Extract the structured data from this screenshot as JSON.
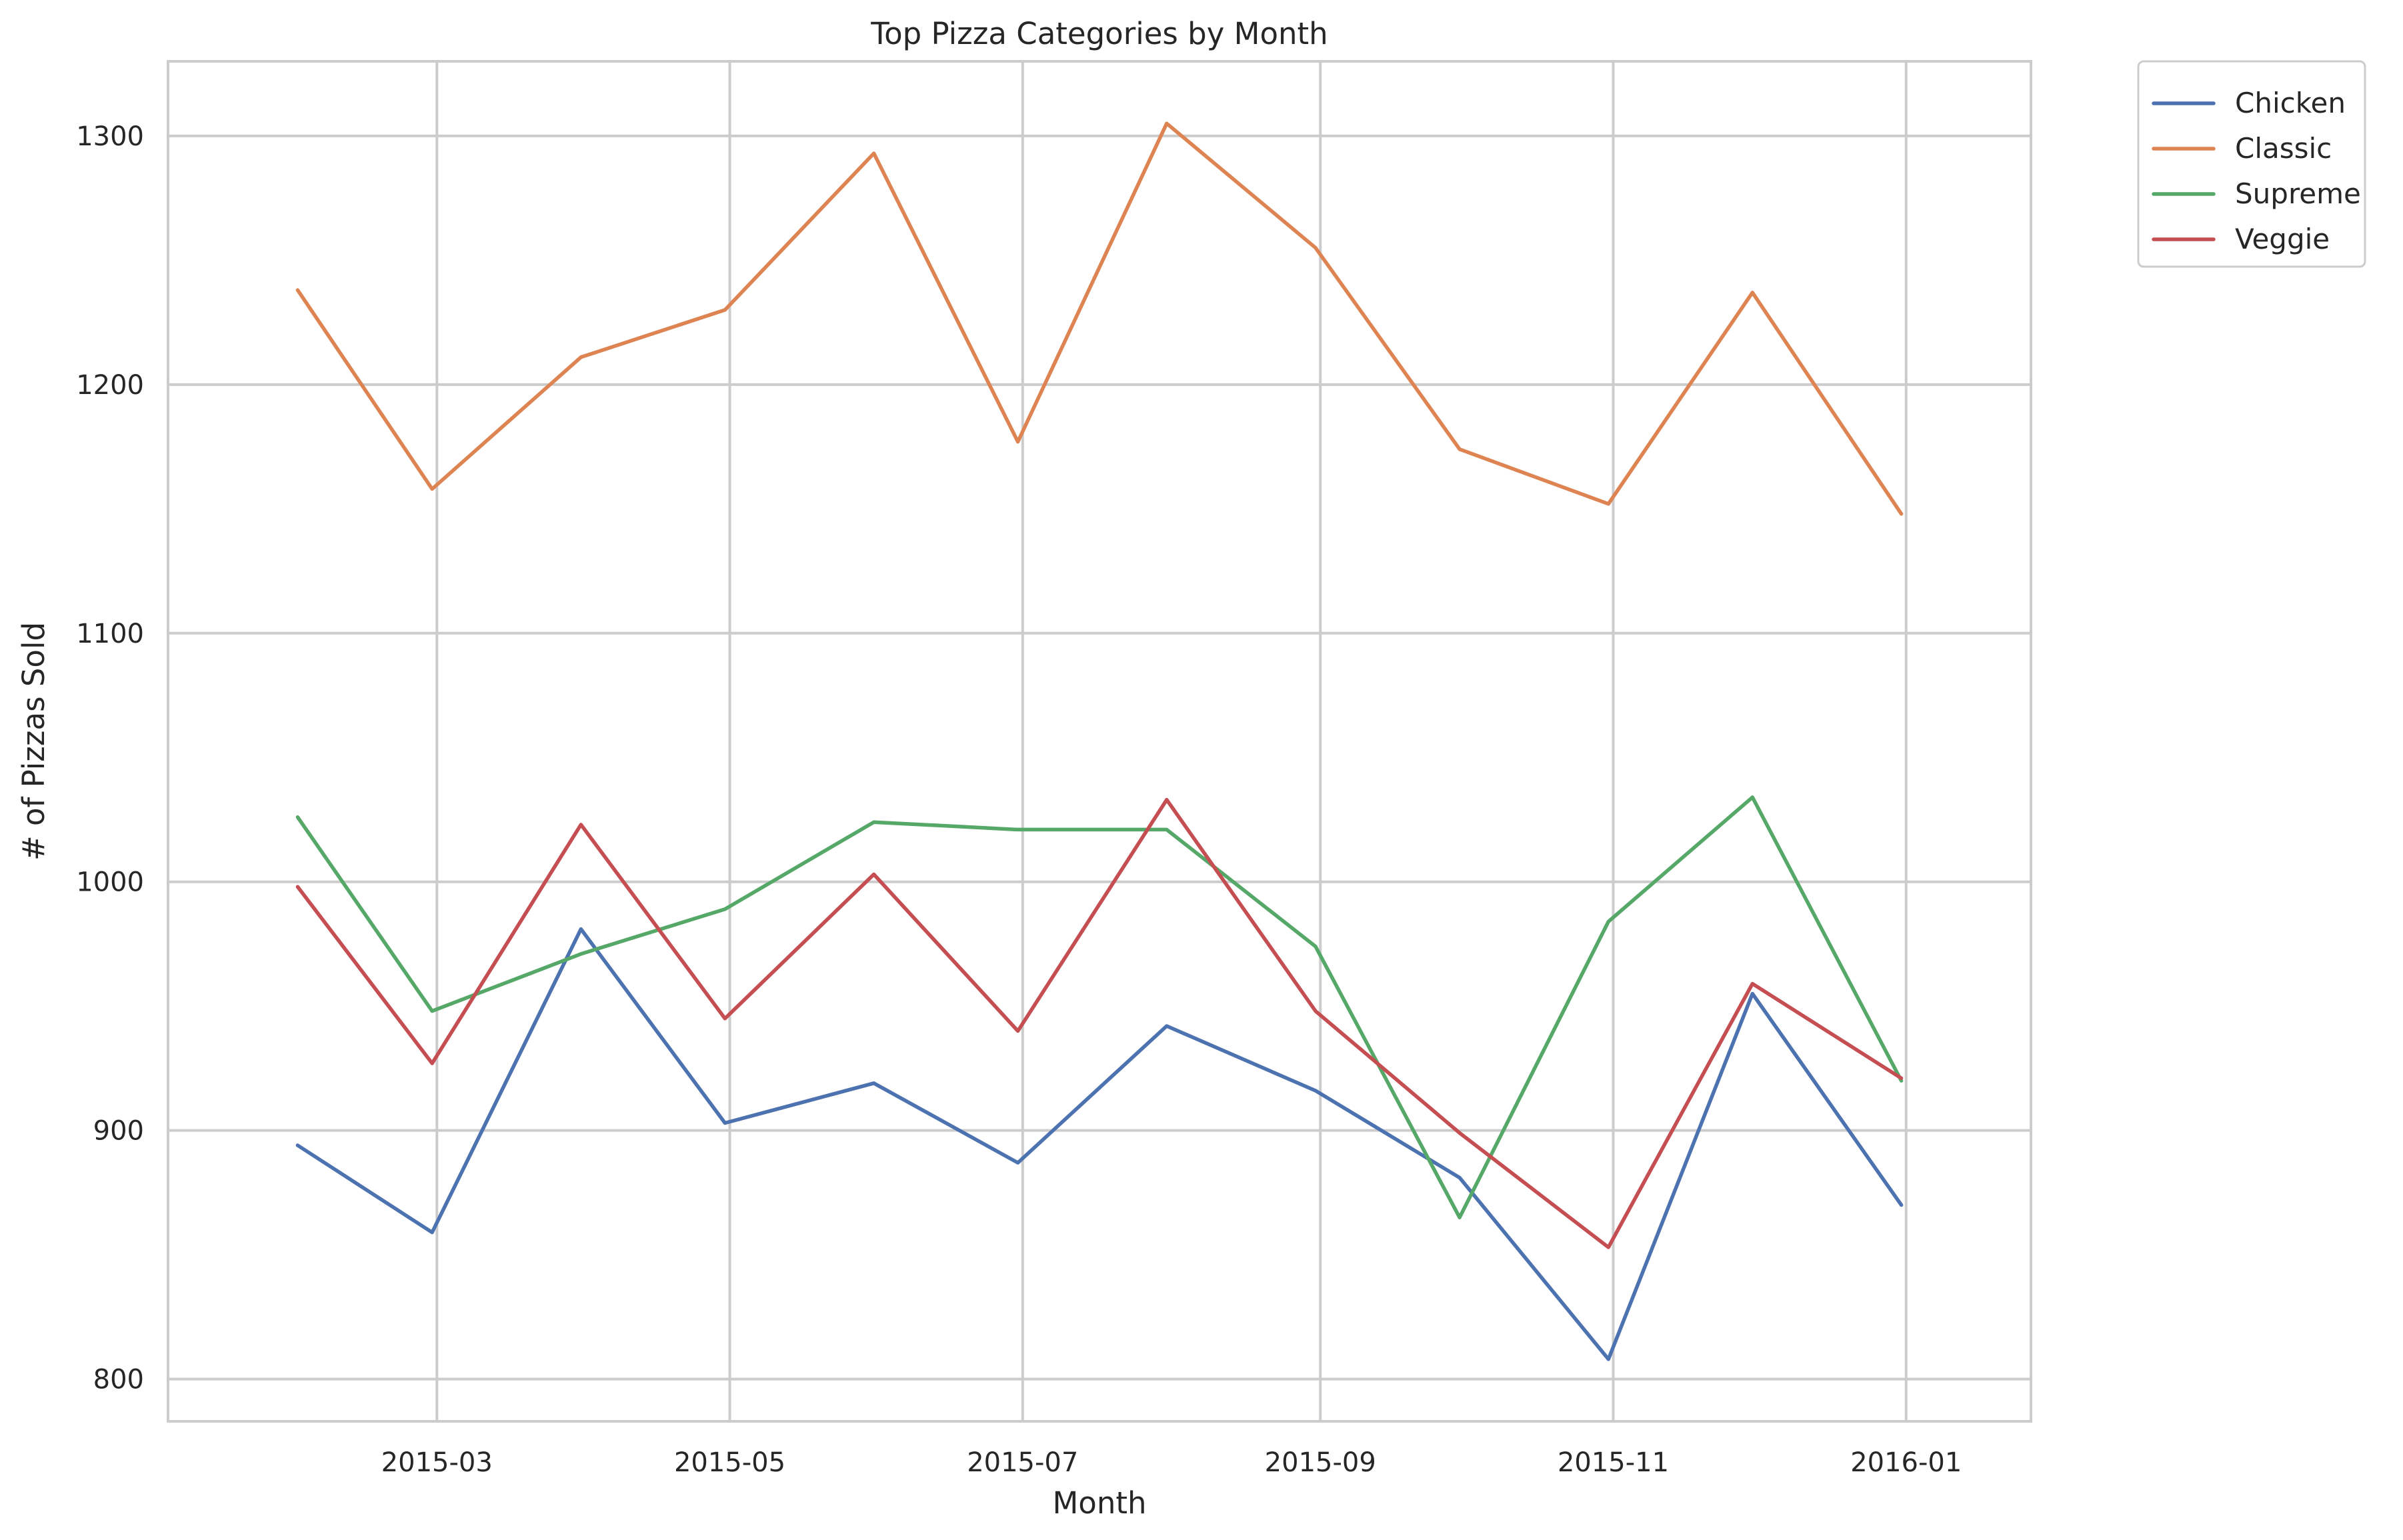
{
  "chart_data": {
    "type": "line",
    "title": "Top Pizza Categories by Month",
    "xlabel": "Month",
    "ylabel": "# of Pizzas Sold",
    "x": [
      "2015-01-31",
      "2015-02-28",
      "2015-03-31",
      "2015-04-30",
      "2015-05-31",
      "2015-06-30",
      "2015-07-31",
      "2015-08-31",
      "2015-09-30",
      "2015-10-31",
      "2015-11-30",
      "2015-12-31"
    ],
    "xlim": [
      "2015-01-04",
      "2016-01-27"
    ],
    "xticks": [
      {
        "date": "2015-03-01",
        "label": "2015-03"
      },
      {
        "date": "2015-05-01",
        "label": "2015-05"
      },
      {
        "date": "2015-07-01",
        "label": "2015-07"
      },
      {
        "date": "2015-09-01",
        "label": "2015-09"
      },
      {
        "date": "2015-11-01",
        "label": "2015-11"
      },
      {
        "date": "2016-01-01",
        "label": "2016-01"
      }
    ],
    "ylim": [
      783,
      1330
    ],
    "yticks": [
      800,
      900,
      1000,
      1100,
      1200,
      1300
    ],
    "grid": true,
    "legend_position": "outside top-right",
    "series": [
      {
        "name": "Chicken",
        "color": "#4c72b0",
        "values": [
          894,
          859,
          981,
          903,
          919,
          887,
          942,
          916,
          881,
          808,
          955,
          870
        ]
      },
      {
        "name": "Classic",
        "color": "#dd8452",
        "values": [
          1238,
          1158,
          1211,
          1230,
          1293,
          1177,
          1305,
          1255,
          1174,
          1152,
          1237,
          1148
        ]
      },
      {
        "name": "Supreme",
        "color": "#55a868",
        "values": [
          1026,
          948,
          971,
          989,
          1024,
          1021,
          1021,
          974,
          865,
          984,
          1034,
          920
        ]
      },
      {
        "name": "Veggie",
        "color": "#c44e52",
        "values": [
          998,
          927,
          1023,
          945,
          1003,
          940,
          1033,
          948,
          899,
          853,
          959,
          921
        ]
      }
    ]
  }
}
